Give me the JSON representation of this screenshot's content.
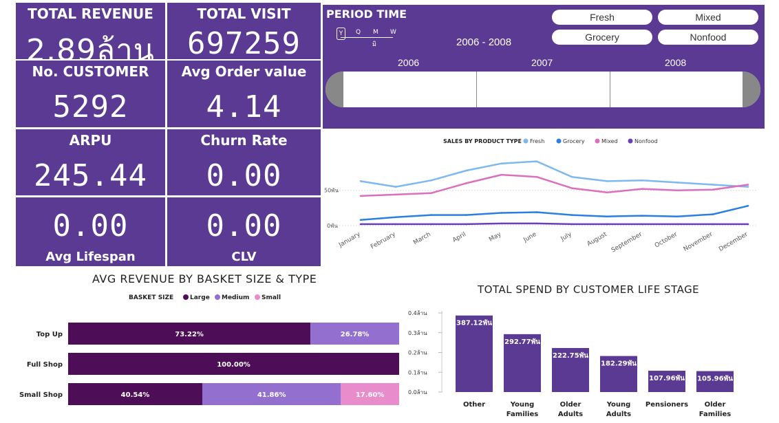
{
  "kpis": {
    "total_revenue": {
      "title": "TOTAL REVENUE",
      "value": "2.89ล้าน"
    },
    "total_visit": {
      "title": "TOTAL VISIT",
      "value": "697259"
    },
    "no_customer": {
      "title": "No. CUSTOMER",
      "value": "5292"
    },
    "avg_order": {
      "title": "Avg Order value",
      "value": "4.14"
    },
    "arpu": {
      "title": "ARPU",
      "value": "245.44"
    },
    "churn": {
      "title": "Churn Rate",
      "value": "0.00"
    },
    "lifespan": {
      "title": "Avg Lifespan",
      "value": "0.00"
    },
    "clv": {
      "title": "CLV",
      "value": "0.00"
    }
  },
  "period": {
    "title": "PERIOD TIME",
    "granularity": [
      "Y",
      "Q",
      "M",
      "W"
    ],
    "granularity_sub": "มิ",
    "range": "2006 - 2008",
    "years": [
      "2006",
      "2007",
      "2008"
    ]
  },
  "filters": [
    "Fresh",
    "Mixed",
    "Grocery",
    "Nonfood"
  ],
  "colors": {
    "panel": "#5b3a93",
    "fresh": "#7db8ef",
    "grocery": "#2a7fe0",
    "mixed": "#db6fbe",
    "nonfood": "#6a3fb8",
    "large": "#4e0e57",
    "medium": "#9370d0",
    "small": "#e88ccb",
    "bar": "#5b3a93"
  },
  "line_chart": {
    "type": "line",
    "title": "SALES BY PRODUCT TYPE",
    "categories": [
      "January",
      "February",
      "March",
      "April",
      "May",
      "June",
      "July",
      "August",
      "September",
      "October",
      "November",
      "December"
    ],
    "yticks": [
      "0พัน",
      "50พัน"
    ],
    "ylim": [
      0,
      115
    ],
    "series": [
      {
        "name": "Fresh",
        "color": "#7db8ef",
        "values": [
          63,
          55,
          64,
          78,
          88,
          91,
          69,
          63,
          64,
          61,
          58,
          55
        ]
      },
      {
        "name": "Grocery",
        "color": "#2a7fe0",
        "values": [
          8,
          12,
          15,
          15,
          18,
          19,
          15,
          13,
          14,
          13,
          16,
          28
        ]
      },
      {
        "name": "Mixed",
        "color": "#db6fbe",
        "values": [
          42,
          44,
          46,
          60,
          72,
          69,
          53,
          47,
          52,
          50,
          51,
          58
        ]
      },
      {
        "name": "Nonfood",
        "color": "#6a3fb8",
        "values": [
          2,
          2,
          2,
          2,
          3,
          3,
          2,
          2,
          2,
          2,
          2,
          2
        ]
      }
    ]
  },
  "basket_chart": {
    "type": "bar",
    "title": "AVG REVENUE BY BASKET SIZE & TYPE",
    "legend_title": "BASKET SIZE",
    "legend": [
      "Large",
      "Medium",
      "Small"
    ],
    "categories": [
      "Top Up",
      "Full Shop",
      "Small Shop"
    ],
    "series": [
      {
        "name": "Large",
        "values": [
          73.22,
          100.0,
          40.54
        ],
        "labels": [
          "73.22%",
          "100.00%",
          "40.54%"
        ]
      },
      {
        "name": "Medium",
        "values": [
          26.78,
          0,
          41.86
        ],
        "labels": [
          "26.78%",
          "",
          "41.86%"
        ]
      },
      {
        "name": "Small",
        "values": [
          0,
          0,
          17.6
        ],
        "labels": [
          "",
          "",
          "17.60%"
        ]
      }
    ]
  },
  "lifestage_chart": {
    "type": "bar",
    "title": "TOTAL SPEND BY CUSTOMER LIFE STAGE",
    "yticks": [
      "0.0ล้าน",
      "0.1ล้าน",
      "0.2ล้าน",
      "0.3ล้าน",
      "0.4ล้าน"
    ],
    "ylim": [
      0,
      0.4
    ],
    "categories": [
      [
        "Other"
      ],
      [
        "Young",
        "Families"
      ],
      [
        "Older",
        "Adults"
      ],
      [
        "Young",
        "Adults"
      ],
      [
        "Pensioners"
      ],
      [
        "Older",
        "Families"
      ]
    ],
    "values": [
      387.12,
      292.77,
      222.75,
      182.29,
      107.96,
      105.96
    ],
    "labels": [
      "387.12พัน",
      "292.77พัน",
      "222.75พัน",
      "182.29พัน",
      "107.96พัน",
      "105.96พัน"
    ]
  }
}
